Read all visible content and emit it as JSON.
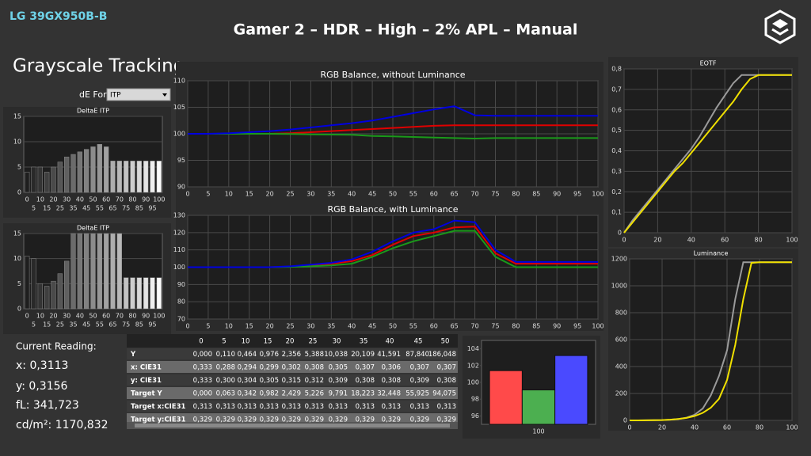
{
  "header": {
    "device": "LG 39GX950B-B",
    "title": "Gamer 2 – HDR – High – 2% APL – Manual"
  },
  "panel": {
    "title": "Grayscale Tracking",
    "formula_label": "dE Formula:",
    "formula_value": "ITP"
  },
  "reading": {
    "label": "Current Reading:",
    "lines": [
      "x: 0,3113",
      "y: 0,3156",
      "fL: 341,723",
      "cd/m²: 1170,832"
    ]
  },
  "table": {
    "columns": [
      "0",
      "5",
      "10",
      "15",
      "20",
      "25",
      "30",
      "35",
      "40",
      "45",
      "50"
    ],
    "rows": [
      {
        "label": "Y",
        "cells": [
          "0,000",
          "0,110",
          "0,464",
          "0,976",
          "2,356",
          "5,388",
          "10,038",
          "20,109",
          "41,591",
          "87,840",
          "186,048"
        ]
      },
      {
        "label": "x: CIE31",
        "cells": [
          "0,333",
          "0,288",
          "0,294",
          "0,299",
          "0,302",
          "0,308",
          "0,305",
          "0,307",
          "0,306",
          "0,307",
          "0,307"
        ]
      },
      {
        "label": "y: CIE31",
        "cells": [
          "0,333",
          "0,300",
          "0,304",
          "0,305",
          "0,315",
          "0,312",
          "0,309",
          "0,308",
          "0,308",
          "0,309",
          "0,308"
        ]
      },
      {
        "label": "Target Y",
        "cells": [
          "0,000",
          "0,063",
          "0,342",
          "0,982",
          "2,429",
          "5,226",
          "9,791",
          "18,223",
          "32,448",
          "55,925",
          "94,075"
        ]
      },
      {
        "label": "Target x:CIE31",
        "cells": [
          "0,313",
          "0,313",
          "0,313",
          "0,313",
          "0,313",
          "0,313",
          "0,313",
          "0,313",
          "0,313",
          "0,313",
          "0,313"
        ]
      },
      {
        "label": "Target y:CIE31",
        "cells": [
          "0,329",
          "0,329",
          "0,329",
          "0,329",
          "0,329",
          "0,329",
          "0,329",
          "0,329",
          "0,329",
          "0,329",
          "0,329"
        ]
      }
    ]
  },
  "chart_data": [
    {
      "type": "bar",
      "title": "DeltaE ITP",
      "categories": [
        "0",
        "5",
        "10",
        "15",
        "20",
        "25",
        "30",
        "35",
        "40",
        "45",
        "50",
        "55",
        "60",
        "65",
        "70",
        "75",
        "80",
        "85",
        "90",
        "95",
        "100"
      ],
      "values": [
        4,
        5,
        5,
        4,
        5,
        6,
        7,
        7.5,
        8,
        8.5,
        9,
        9.5,
        9,
        6.2,
        6.2,
        6.2,
        6.2,
        6.2,
        6.2,
        6.2,
        6.2
      ],
      "ylim": [
        0,
        15
      ],
      "yticks": [
        0,
        5,
        10,
        15
      ],
      "grid": true
    },
    {
      "type": "bar",
      "title": "DeltaE ITP",
      "categories": [
        "0",
        "5",
        "10",
        "15",
        "20",
        "25",
        "30",
        "35",
        "40",
        "45",
        "50",
        "55",
        "60",
        "65",
        "70",
        "75",
        "80",
        "85",
        "90",
        "95",
        "100"
      ],
      "values": [
        10.5,
        10,
        5,
        4.5,
        5.5,
        7,
        9.5,
        15,
        15,
        15,
        15,
        15,
        15,
        15,
        15,
        6.2,
        6.2,
        6.2,
        6.2,
        6.2,
        6.2
      ],
      "ylim": [
        0,
        15
      ],
      "yticks": [
        0,
        5,
        10,
        15
      ],
      "grid": true
    },
    {
      "type": "line",
      "title": "RGB Balance, without Luminance",
      "x": [
        0,
        5,
        10,
        15,
        20,
        25,
        30,
        35,
        40,
        45,
        50,
        55,
        60,
        65,
        70,
        75,
        80,
        85,
        90,
        95,
        100
      ],
      "series": [
        {
          "color": "#e00000",
          "values": [
            100,
            100,
            100,
            100,
            100,
            100.1,
            100.3,
            100.5,
            100.7,
            100.9,
            101.1,
            101.3,
            101.5,
            101.6,
            101.6,
            101.6,
            101.6,
            101.6,
            101.6,
            101.6,
            101.6
          ]
        },
        {
          "color": "#1a9a1a",
          "values": [
            100,
            100,
            100,
            100,
            100,
            99.95,
            99.9,
            99.85,
            99.8,
            99.6,
            99.5,
            99.4,
            99.3,
            99.2,
            99.1,
            99.2,
            99.2,
            99.2,
            99.2,
            99.2,
            99.2
          ]
        },
        {
          "color": "#0000e0",
          "values": [
            100,
            100,
            100.1,
            100.3,
            100.5,
            100.8,
            101.2,
            101.6,
            102,
            102.5,
            103.2,
            103.9,
            104.6,
            105.2,
            103.5,
            103.4,
            103.4,
            103.4,
            103.4,
            103.4,
            103.4
          ]
        }
      ],
      "xlim": [
        0,
        100
      ],
      "xticks": [
        0,
        5,
        10,
        15,
        20,
        25,
        30,
        35,
        40,
        45,
        50,
        55,
        60,
        65,
        70,
        75,
        80,
        85,
        90,
        95,
        100
      ],
      "ylim": [
        90,
        110
      ],
      "yticks": [
        90,
        95,
        100,
        105,
        110
      ],
      "grid": true
    },
    {
      "type": "line",
      "title": "RGB Balance, with Luminance",
      "x": [
        0,
        5,
        10,
        15,
        20,
        25,
        30,
        35,
        40,
        45,
        50,
        55,
        60,
        65,
        70,
        75,
        80,
        85,
        90,
        95,
        100
      ],
      "series": [
        {
          "color": "#e00000",
          "values": [
            100,
            100,
            100,
            100,
            100,
            100.3,
            101,
            102,
            103.5,
            107,
            113,
            118,
            120,
            123,
            123.5,
            108,
            102,
            102,
            102,
            102,
            102
          ]
        },
        {
          "color": "#1a9a1a",
          "values": [
            100,
            100,
            100,
            100,
            100,
            100.2,
            100.5,
            101,
            102,
            106,
            111,
            115,
            118,
            121,
            121,
            106,
            100,
            100,
            100,
            100,
            100
          ]
        },
        {
          "color": "#0000e0",
          "values": [
            100,
            100,
            100,
            100,
            100,
            100.5,
            101.5,
            102.5,
            104.5,
            109,
            115,
            120,
            122,
            127,
            126,
            110,
            103,
            103,
            103,
            103,
            103
          ]
        }
      ],
      "xlim": [
        0,
        100
      ],
      "xticks": [
        0,
        5,
        10,
        15,
        20,
        25,
        30,
        35,
        40,
        45,
        50,
        55,
        60,
        65,
        70,
        75,
        80,
        85,
        90,
        95,
        100
      ],
      "ylim": [
        70,
        130
      ],
      "yticks": [
        70,
        80,
        90,
        100,
        110,
        120,
        130
      ],
      "grid": true
    },
    {
      "type": "line",
      "title": "EOTF",
      "x": [
        0,
        5,
        10,
        15,
        20,
        25,
        30,
        35,
        40,
        45,
        50,
        55,
        60,
        65,
        70,
        75,
        80,
        85,
        90,
        95,
        100
      ],
      "series": [
        {
          "color": "#9a9a9a",
          "values": [
            0,
            0.06,
            0.11,
            0.16,
            0.21,
            0.26,
            0.31,
            0.36,
            0.41,
            0.47,
            0.54,
            0.61,
            0.67,
            0.73,
            0.77,
            0.77,
            0.77,
            0.77,
            0.77,
            0.77,
            0.77
          ]
        },
        {
          "color": "#f0e000",
          "values": [
            0,
            0.05,
            0.1,
            0.15,
            0.2,
            0.25,
            0.3,
            0.34,
            0.39,
            0.44,
            0.49,
            0.54,
            0.59,
            0.64,
            0.7,
            0.75,
            0.77,
            0.77,
            0.77,
            0.77,
            0.77
          ]
        }
      ],
      "xlim": [
        0,
        100
      ],
      "xticks": [
        0,
        20,
        40,
        60,
        80,
        100
      ],
      "ylim": [
        0,
        0.8
      ],
      "yticks": [
        0,
        {
          "value": 0.1,
          "label": "0,1"
        },
        {
          "value": 0.2,
          "label": "0,2"
        },
        {
          "value": 0.3,
          "label": "0,3"
        },
        {
          "value": 0.4,
          "label": "0,4"
        },
        {
          "value": 0.5,
          "label": "0,5"
        },
        {
          "value": 0.6,
          "label": "0,6"
        },
        {
          "value": 0.7,
          "label": "0,7"
        },
        {
          "value": 0.8,
          "label": "0,8"
        }
      ],
      "grid": true
    },
    {
      "type": "line",
      "title": "Luminance",
      "x": [
        0,
        5,
        10,
        15,
        20,
        25,
        30,
        35,
        40,
        45,
        50,
        55,
        60,
        65,
        70,
        75,
        80,
        85,
        90,
        95,
        100
      ],
      "series": [
        {
          "color": "#9a9a9a",
          "values": [
            0,
            0.11,
            0.46,
            0.98,
            2.36,
            5.39,
            10.04,
            20.11,
            41.59,
            87.84,
            186.05,
            330,
            520,
            900,
            1175,
            1175,
            1175,
            1175,
            1175,
            1175,
            1175
          ]
        },
        {
          "color": "#f0e000",
          "values": [
            0,
            0.06,
            0.34,
            0.98,
            2.43,
            5.23,
            9.79,
            18.22,
            32.45,
            55.93,
            94.08,
            160,
            300,
            560,
            900,
            1170,
            1175,
            1175,
            1175,
            1175,
            1175
          ]
        }
      ],
      "xlim": [
        0,
        100
      ],
      "xticks": [
        0,
        20,
        40,
        60,
        80,
        100
      ],
      "ylim": [
        0,
        1200
      ],
      "yticks": [
        0,
        200,
        400,
        600,
        800,
        1000,
        1200
      ],
      "grid": true
    },
    {
      "type": "bar",
      "categories": [
        "100"
      ],
      "series": [
        {
          "color": "#ff4a4a",
          "values": [
            101.4
          ]
        },
        {
          "color": "#4caf50",
          "values": [
            99.1
          ]
        },
        {
          "color": "#4a4aff",
          "values": [
            103.2
          ]
        }
      ],
      "ylim": [
        95,
        105
      ],
      "yticks": [
        96,
        98,
        100,
        102,
        104
      ],
      "grid": false
    }
  ]
}
